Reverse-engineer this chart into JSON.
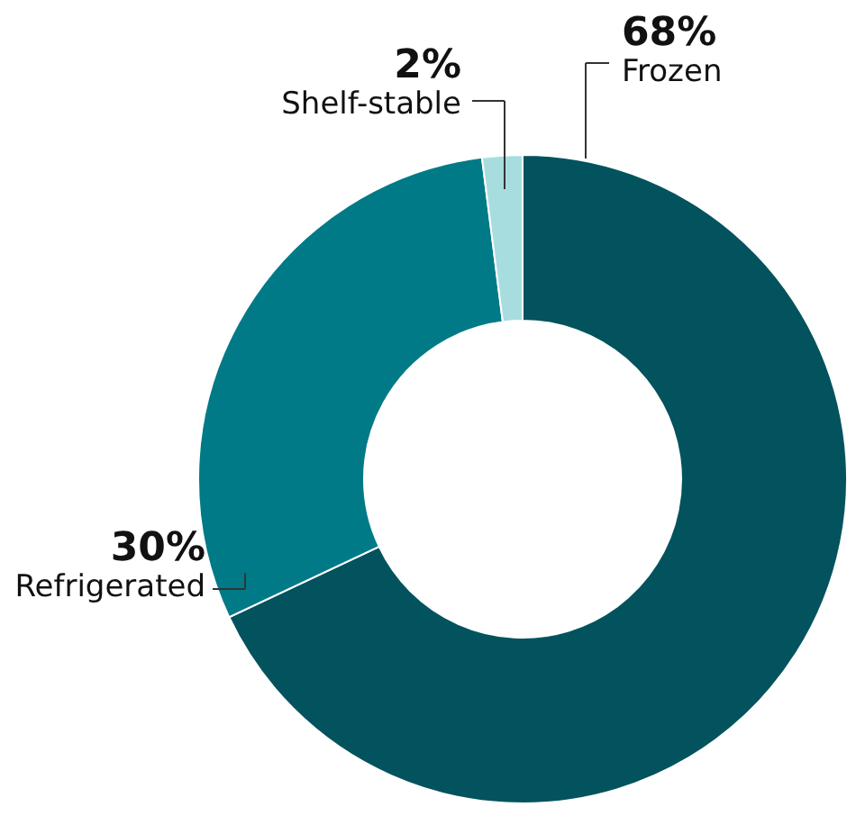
{
  "chart_data": {
    "type": "donut",
    "categories": [
      "Frozen",
      "Refrigerated",
      "Shelf-stable"
    ],
    "values": [
      68,
      30,
      2
    ],
    "value_labels": [
      "68%",
      "30%",
      "2%"
    ],
    "colors": [
      "#02535d",
      "#007a87",
      "#a8dde0"
    ]
  }
}
